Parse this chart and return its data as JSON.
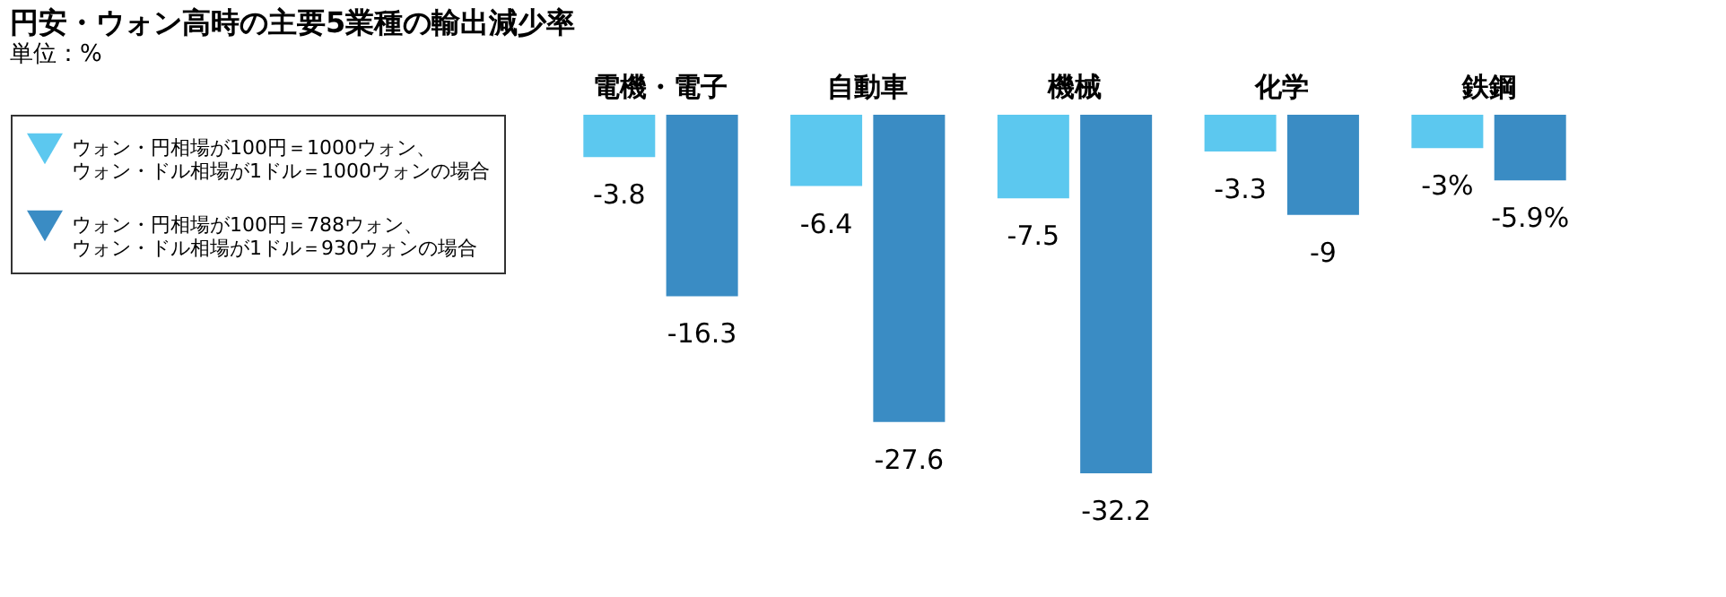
{
  "chart_data": {
    "type": "bar",
    "title": "円安・ウォン高時の主要5業種の輸出減少率",
    "subtitle": "単位：%",
    "categories": [
      "電機・電子",
      "自動車",
      "機械",
      "化学",
      "鉄鋼"
    ],
    "series": [
      {
        "name": "ウォン・円相場が100円＝1000ウォン、ウォン・ドル相場が1ドル＝1000ウォンの場合",
        "color": "#5cc8ef",
        "values": [
          -3.8,
          -6.4,
          -7.5,
          -3.3,
          -3
        ],
        "value_labels": [
          "-3.8",
          "-6.4",
          "-7.5",
          "-3.3",
          "-3%"
        ]
      },
      {
        "name": "ウォン・円相場が100円＝788ウォン、ウォン・ドル相場が1ドル＝930ウォンの場合",
        "color": "#3a8cc4",
        "values": [
          -16.3,
          -27.6,
          -32.2,
          -9,
          -5.9
        ],
        "value_labels": [
          "-16.3",
          "-27.6",
          "-32.2",
          "-9",
          "-5.9%"
        ]
      }
    ],
    "legend": "left"
  }
}
